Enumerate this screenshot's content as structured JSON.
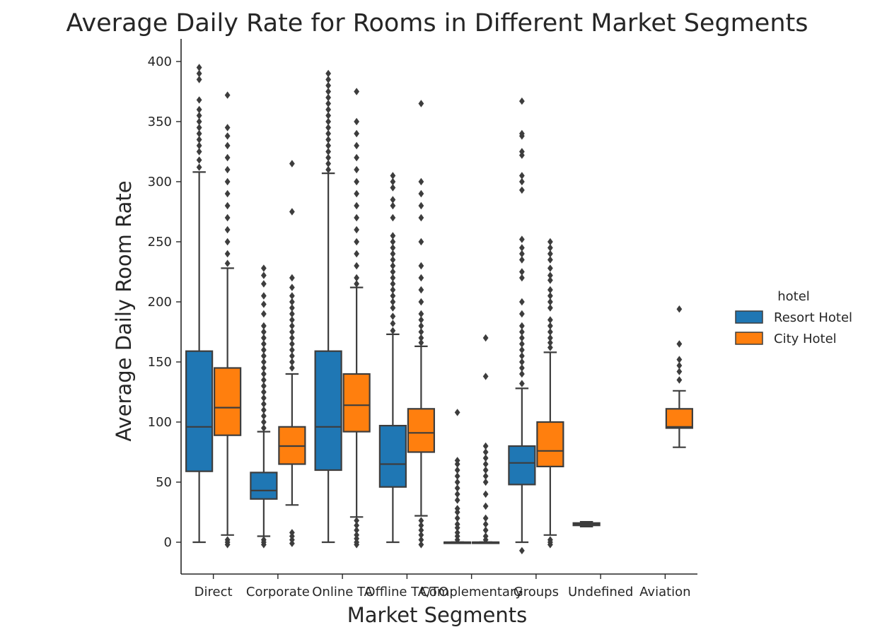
{
  "chart_data": {
    "type": "boxplot",
    "title": "Average Daily Rate for Rooms in Different Market Segments",
    "xlabel": "Market Segments",
    "ylabel": "Average Daily Room Rate",
    "categories": [
      "Direct",
      "Corporate",
      "Online TA",
      "Offline TA/TO",
      "Complementary",
      "Groups",
      "Undefined",
      "Aviation"
    ],
    "ylim": [
      -27,
      418
    ],
    "yticks": [
      0,
      50,
      100,
      150,
      200,
      250,
      300,
      350,
      400
    ],
    "grid": false,
    "legend": {
      "title": "hotel",
      "placement": "right"
    },
    "series": [
      {
        "name": "Resort Hotel",
        "color": "#1f77b4",
        "boxes": [
          {
            "category": "Direct",
            "whisker_low": 0,
            "q1": 59,
            "median": 96,
            "q3": 159,
            "whisker_high": 308,
            "outliers": [
              312,
              318,
              325,
              330,
              335,
              340,
              345,
              350,
              355,
              360,
              368,
              385,
              390,
              395
            ]
          },
          {
            "category": "Corporate",
            "whisker_low": 5,
            "q1": 36,
            "median": 43,
            "q3": 58,
            "whisker_high": 92,
            "outliers": [
              -2,
              0,
              2,
              95,
              100,
              105,
              110,
              115,
              120,
              125,
              130,
              135,
              140,
              145,
              150,
              155,
              160,
              165,
              170,
              175,
              180,
              190,
              198,
              205,
              215,
              222,
              228
            ]
          },
          {
            "category": "Online TA",
            "whisker_low": 0,
            "q1": 60,
            "median": 96,
            "q3": 159,
            "whisker_high": 307,
            "outliers": [
              310,
              315,
              320,
              325,
              330,
              335,
              340,
              345,
              350,
              355,
              360,
              365,
              370,
              375,
              380,
              385,
              390
            ]
          },
          {
            "category": "Offline TA/TO",
            "whisker_low": 0,
            "q1": 46,
            "median": 65,
            "q3": 97,
            "whisker_high": 173,
            "outliers": [
              176,
              182,
              188,
              195,
              200,
              205,
              210,
              215,
              220,
              225,
              230,
              235,
              240,
              245,
              250,
              255,
              270,
              280,
              285,
              295,
              300,
              305
            ]
          },
          {
            "category": "Complementary",
            "whisker_low": 0,
            "q1": 0,
            "median": 0,
            "q3": 0,
            "whisker_high": 0,
            "outliers": [
              2,
              5,
              8,
              12,
              15,
              20,
              25,
              28,
              35,
              40,
              45,
              50,
              55,
              60,
              65,
              68,
              108
            ]
          },
          {
            "category": "Groups",
            "whisker_low": 0,
            "q1": 48,
            "median": 66,
            "q3": 80,
            "whisker_high": 128,
            "outliers": [
              -7,
              132,
              140,
              145,
              150,
              155,
              160,
              165,
              170,
              175,
              180,
              190,
              200,
              220,
              225,
              235,
              240,
              245,
              252,
              293,
              300,
              305,
              322,
              325,
              338,
              340,
              367
            ]
          },
          {
            "category": "Undefined",
            "whisker_low": 13,
            "q1": 14,
            "median": 15,
            "q3": 16,
            "whisker_high": 17,
            "outliers": []
          }
        ]
      },
      {
        "name": "City Hotel",
        "color": "#ff7f0e",
        "boxes": [
          {
            "category": "Direct",
            "whisker_low": 6,
            "q1": 89,
            "median": 112,
            "q3": 145,
            "whisker_high": 228,
            "outliers": [
              -2,
              0,
              2,
              232,
              240,
              250,
              260,
              270,
              280,
              290,
              300,
              310,
              320,
              330,
              338,
              345,
              372
            ]
          },
          {
            "category": "Corporate",
            "whisker_low": 31,
            "q1": 65,
            "median": 80,
            "q3": 96,
            "whisker_high": 140,
            "outliers": [
              -1,
              2,
              5,
              8,
              145,
              150,
              155,
              160,
              165,
              170,
              175,
              180,
              185,
              190,
              195,
              200,
              205,
              212,
              220,
              275,
              315
            ]
          },
          {
            "category": "Online TA",
            "whisker_low": 21,
            "q1": 92,
            "median": 114,
            "q3": 140,
            "whisker_high": 212,
            "outliers": [
              -2,
              0,
              3,
              6,
              10,
              14,
              18,
              215,
              220,
              230,
              240,
              250,
              260,
              270,
              280,
              290,
              300,
              310,
              320,
              330,
              340,
              350,
              375
            ]
          },
          {
            "category": "Offline TA/TO",
            "whisker_low": 22,
            "q1": 75,
            "median": 91,
            "q3": 111,
            "whisker_high": 163,
            "outliers": [
              -2,
              2,
              6,
              10,
              14,
              18,
              166,
              170,
              175,
              180,
              185,
              190,
              200,
              210,
              220,
              230,
              250,
              270,
              280,
              290,
              300,
              365
            ]
          },
          {
            "category": "Complementary",
            "whisker_low": 0,
            "q1": 0,
            "median": 0,
            "q3": 0,
            "whisker_high": 0,
            "outliers": [
              2,
              5,
              10,
              15,
              20,
              30,
              40,
              50,
              55,
              60,
              65,
              70,
              75,
              80,
              138,
              170
            ]
          },
          {
            "category": "Groups",
            "whisker_low": 6,
            "q1": 63,
            "median": 76,
            "q3": 100,
            "whisker_high": 158,
            "outliers": [
              -2,
              0,
              2,
              162,
              166,
              170,
              175,
              180,
              185,
              195,
              200,
              205,
              210,
              218,
              222,
              228,
              235,
              240,
              245,
              250
            ]
          },
          {
            "category": "Aviation",
            "whisker_low": 79,
            "q1": 95,
            "median": 96,
            "q3": 111,
            "whisker_high": 126,
            "outliers": [
              135,
              142,
              147,
              152,
              165,
              194
            ]
          }
        ]
      }
    ]
  }
}
